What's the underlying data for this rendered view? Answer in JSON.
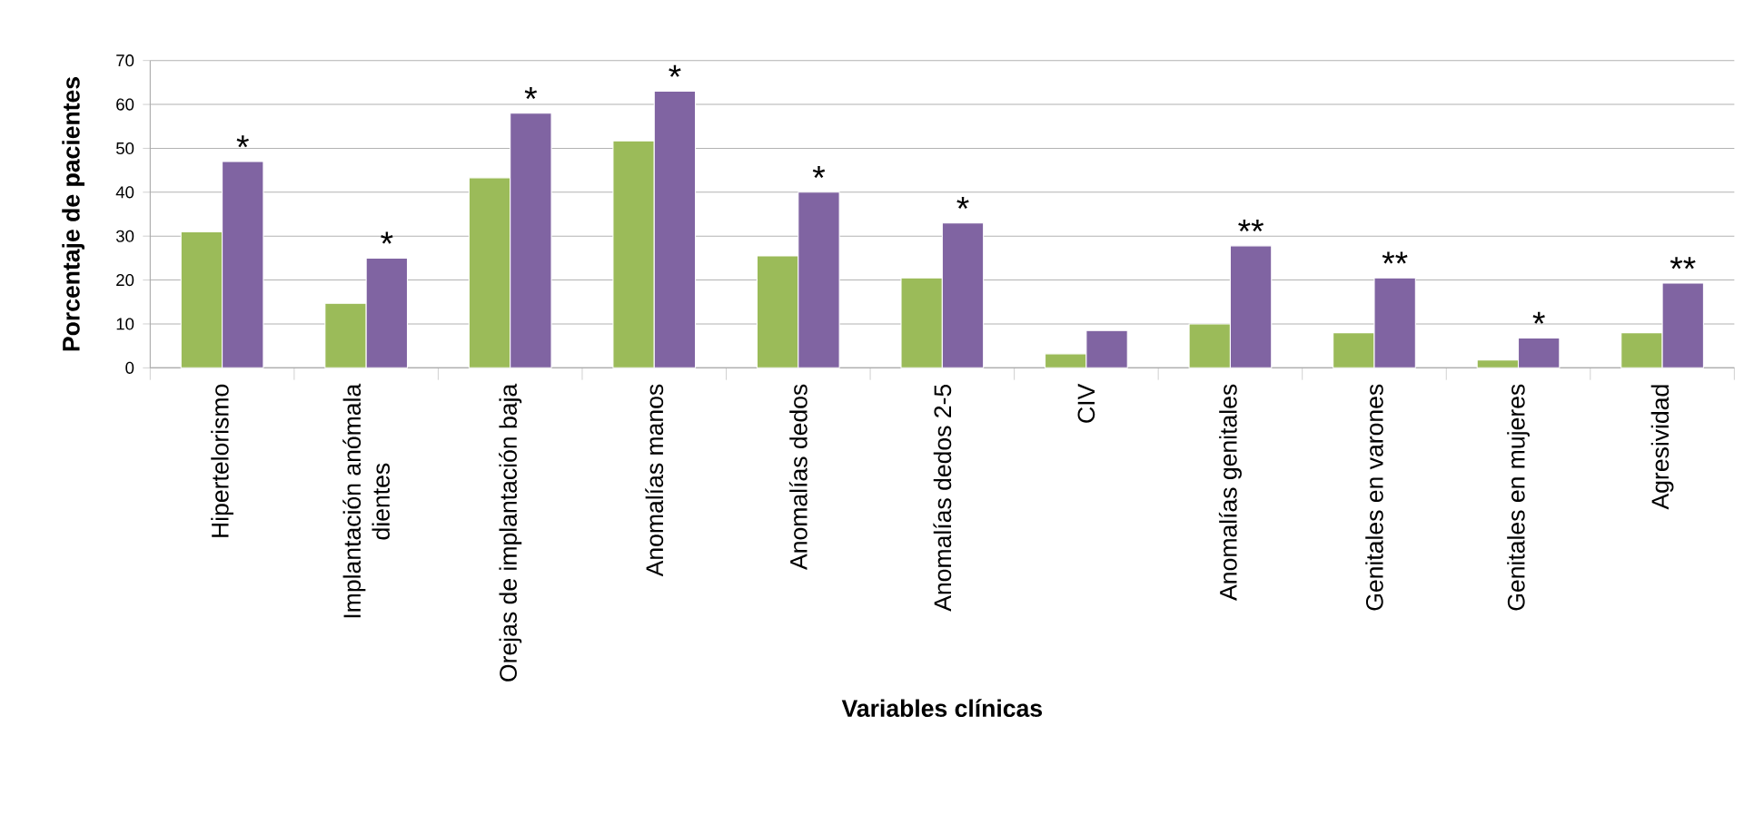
{
  "chart_data": {
    "type": "bar",
    "xlabel": "Variables clínicas",
    "ylabel": "Porcentaje de pacientes",
    "categories": [
      "Hipertelorismo",
      "Implantación anómala dientes",
      "Orejas de implantación baja",
      "Anomalías manos",
      "Anomalías dedos",
      "Anomalías dedos 2-5",
      "CIV",
      "Anomalías genitales",
      "Genitales en varones",
      "Genitales en mujeres",
      "Agresividad"
    ],
    "series": [
      {
        "color": "#9bbb59",
        "values": [
          31,
          14.7,
          43.3,
          51.7,
          25.5,
          20.5,
          3.2,
          10,
          8,
          1.8,
          8
        ]
      },
      {
        "color": "#8064a2",
        "values": [
          47,
          25,
          58,
          63,
          40,
          33,
          8.5,
          27.8,
          20.5,
          6.8,
          19.3
        ]
      }
    ],
    "ylim": [
      0,
      70
    ],
    "yticks": [
      0,
      10,
      20,
      30,
      40,
      50,
      60,
      70
    ],
    "grid": "y",
    "annotations": [
      {
        "text": "*",
        "x": "Hipertelorismo",
        "y": 47
      },
      {
        "text": "*",
        "x": "Implantación anómala dientes",
        "y": 25
      },
      {
        "text": "*",
        "x": "Orejas de implantación baja",
        "y": 58
      },
      {
        "text": "*",
        "x": "Anomalías manos",
        "y": 63
      },
      {
        "text": "*",
        "x": "Anomalías dedos",
        "y": 40
      },
      {
        "text": "*",
        "x": "Anomalías dedos 2-5",
        "y": 33
      },
      {
        "text": "**",
        "x": "Anomalías genitales",
        "y": 27.8
      },
      {
        "text": "**",
        "x": "Genitales en varones",
        "y": 20.5
      },
      {
        "text": "*",
        "x": "Genitales en mujeres",
        "y": 6.8
      },
      {
        "text": "**",
        "x": "Agresividad",
        "y": 19.3
      }
    ]
  }
}
